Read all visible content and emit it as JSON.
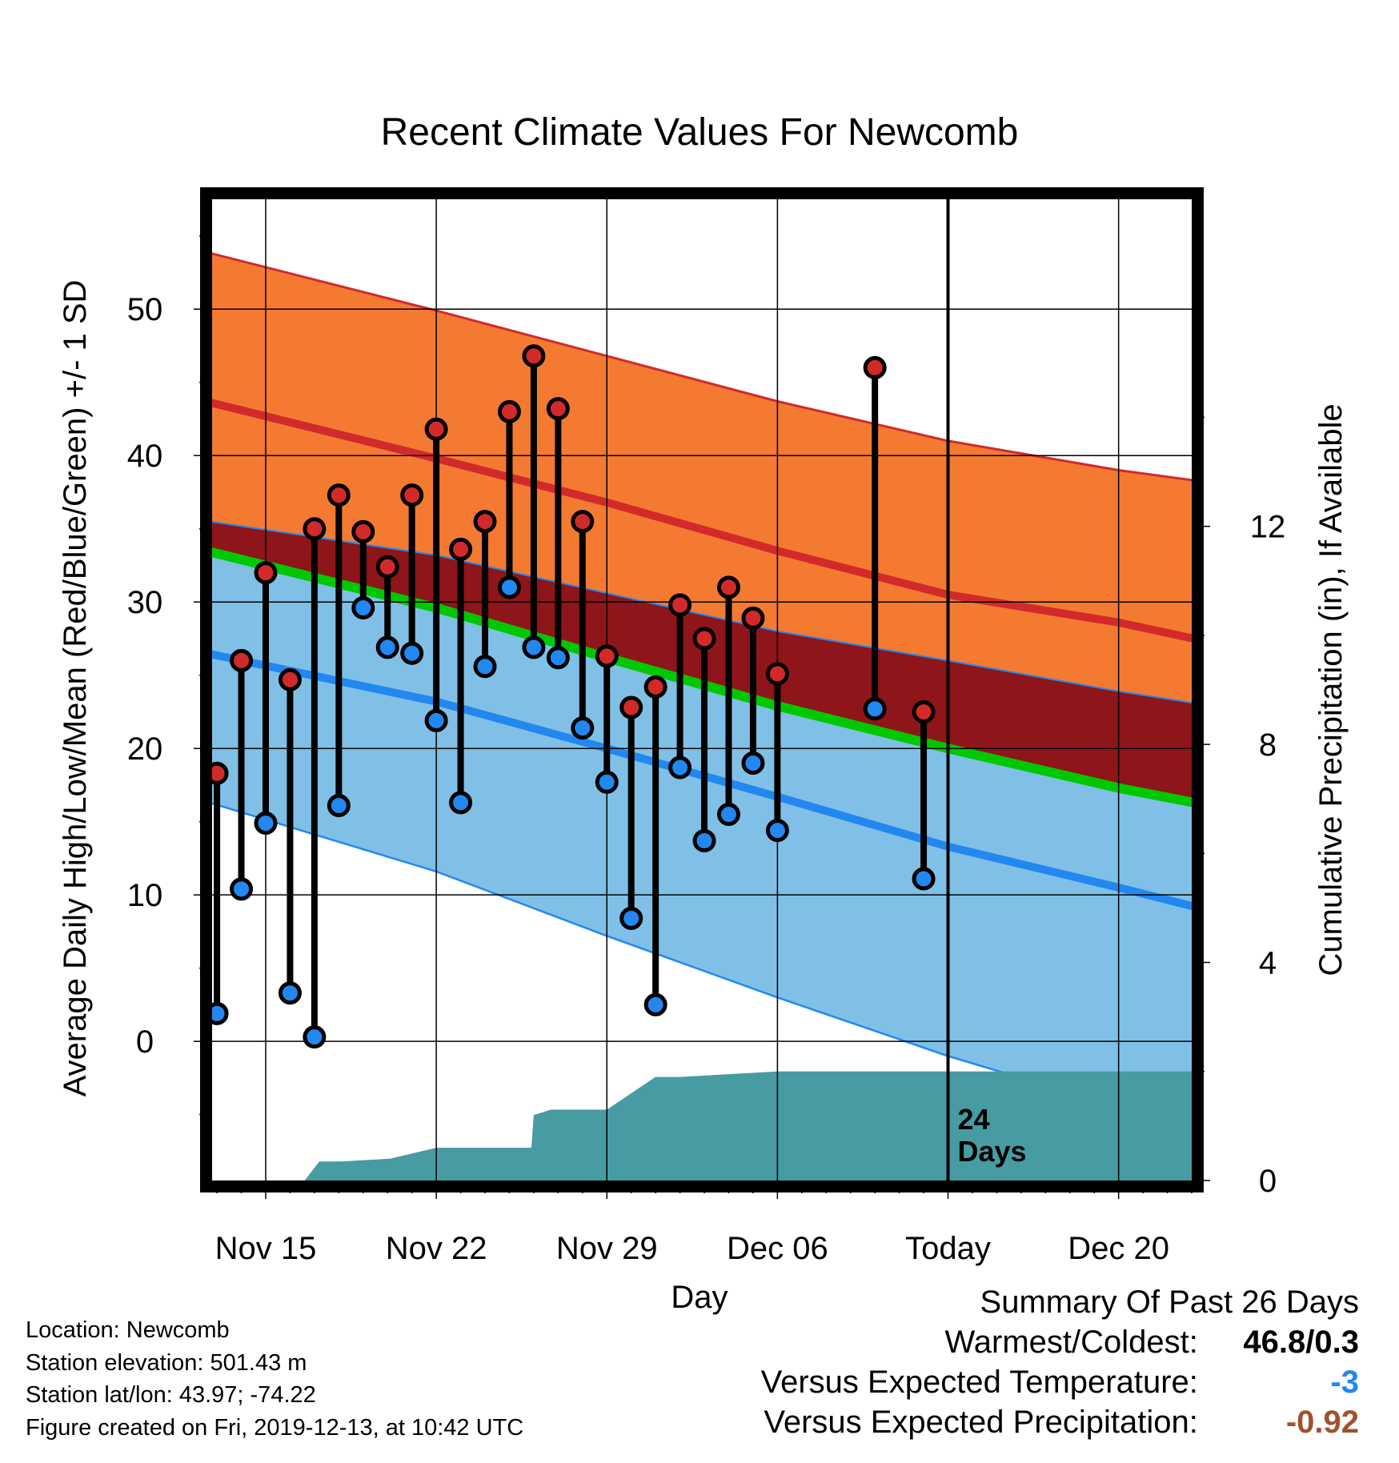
{
  "chart_data": {
    "type": "line",
    "title": "Recent Climate Values For Newcomb",
    "xlabel": "Day",
    "ylabel": "Average Daily High/Low/Mean (Red/Blue/Green) +/- 1 SD",
    "y2label": "Cumulative Precipitation (in), If Available",
    "xlim": [
      -2.2,
      38.0
    ],
    "ylim": [
      -9.5,
      57.5
    ],
    "y2lim": [
      0,
      18
    ],
    "x_tick_labels": [
      {
        "x": 0,
        "label": "Nov 15"
      },
      {
        "x": 7,
        "label": "Nov 22"
      },
      {
        "x": 14,
        "label": "Nov 29"
      },
      {
        "x": 21,
        "label": "Dec 06"
      },
      {
        "x": 28,
        "label": "Today"
      },
      {
        "x": 35,
        "label": "Dec 20"
      }
    ],
    "y_ticks": [
      0,
      10,
      20,
      30,
      40,
      50
    ],
    "y2_ticks": [
      0,
      4,
      8,
      12
    ],
    "today_x": 28,
    "today_annotation": [
      "24",
      "Days"
    ],
    "normal_high": {
      "x": [
        -2.7,
        7,
        14,
        21,
        28,
        35,
        38.1
      ],
      "mean": [
        43.8,
        39.8,
        36.8,
        33.5,
        30.5,
        28.6,
        27.5
      ],
      "upper": [
        54.0,
        49.9,
        46.8,
        43.7,
        41.0,
        39.0,
        38.3
      ]
    },
    "normal_mean": {
      "x": [
        -2.7,
        7,
        14,
        21,
        28,
        35,
        38.1
      ],
      "mean": [
        33.6,
        29.6,
        26.2,
        22.9,
        20.0,
        17.3,
        16.3
      ]
    },
    "normal_low": {
      "x": [
        -2.7,
        7,
        14,
        21,
        28,
        35,
        38.1
      ],
      "mean": [
        26.6,
        23.2,
        20.0,
        16.7,
        13.3,
        10.5,
        9.2
      ],
      "lower": [
        16.5,
        11.6,
        7.2,
        3.0,
        -1.0,
        -4.5,
        -6.0
      ],
      "upper": [
        35.6,
        33.2,
        30.6,
        28.0,
        26.0,
        23.9,
        23.1
      ]
    },
    "observed": {
      "x": [
        -2,
        -1,
        0,
        1,
        2,
        3,
        4,
        5,
        6,
        7,
        8,
        9,
        10,
        11,
        12,
        13,
        14,
        15,
        16,
        17,
        18,
        19,
        20,
        21,
        25,
        27
      ],
      "high": [
        18.3,
        26.0,
        32.0,
        24.7,
        35.0,
        37.3,
        34.8,
        32.4,
        37.3,
        41.8,
        33.6,
        35.5,
        43.0,
        46.8,
        43.2,
        35.5,
        26.3,
        22.8,
        24.2,
        29.8,
        27.5,
        31.0,
        28.9,
        25.1,
        46.0,
        22.5
      ],
      "low": [
        1.9,
        10.4,
        14.9,
        3.3,
        0.3,
        16.1,
        29.6,
        26.9,
        26.5,
        21.9,
        16.3,
        25.6,
        31.0,
        26.9,
        26.2,
        21.4,
        17.7,
        8.4,
        2.5,
        18.7,
        13.7,
        15.5,
        19.0,
        14.4,
        22.7,
        11.1
      ]
    },
    "precip_cumulative": {
      "x": [
        -2.2,
        1.6,
        2.2,
        3.1,
        5.1,
        7.0,
        10.9,
        11.0,
        11.7,
        14.0,
        15.0,
        16.0,
        17.0,
        21.0,
        35.0,
        38.1
      ],
      "y": [
        0,
        0,
        0.35,
        0.35,
        0.4,
        0.6,
        0.6,
        1.2,
        1.3,
        1.3,
        1.6,
        1.9,
        1.9,
        2.0,
        2.0,
        2.0
      ]
    },
    "colors": {
      "high_band": "#f47a32",
      "high_line": "#d22a2a",
      "mean_band": "#8e1519",
      "mean_line": "#00c800",
      "low_band": "#80c0e6",
      "low_line": "#2288f0",
      "precip": "#479ba3",
      "high_marker": "#d22a2a",
      "low_marker": "#2288f0",
      "summary_temp": "#2288f0",
      "summary_precip": "#a0522d"
    },
    "grid": true
  },
  "info": {
    "location": "Location: Newcomb",
    "elevation": "Station elevation: 501.43 m",
    "latlon": "Station lat/lon: 43.97; -74.22",
    "created": "Figure created on Fri, 2019-12-13, at 10:42 UTC"
  },
  "summary": {
    "heading": "Summary Of Past 26 Days",
    "warm_cold_label": "Warmest/Coldest:",
    "warm_cold_value": "46.8/0.3",
    "temp_label": "Versus Expected Temperature:",
    "temp_value": "-3",
    "precip_label": "Versus Expected Precipitation:",
    "precip_value": "-0.92"
  }
}
